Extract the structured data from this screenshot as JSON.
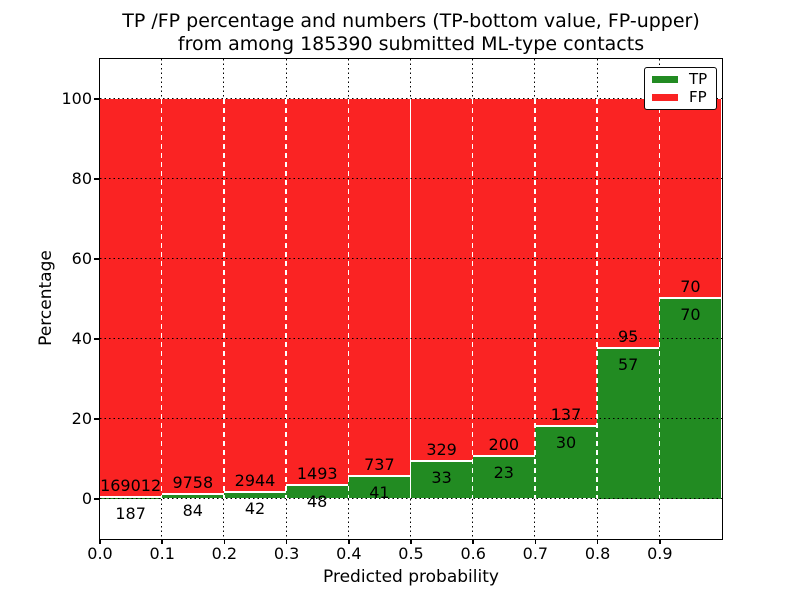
{
  "chart_data": {
    "type": "bar",
    "stacked": true,
    "normalized": "percent",
    "title_line1": "TP /FP percentage and numbers (TP-bottom value, FP-upper)",
    "title_line2": "from among 185390 submitted ML-type contacts",
    "total_contacts": 185390,
    "xlabel": "Predicted probability",
    "ylabel": "Percentage",
    "bin_starts": [
      0.0,
      0.1,
      0.2,
      0.3,
      0.4,
      0.5,
      0.6,
      0.7,
      0.8,
      0.9
    ],
    "bin_width": 0.1,
    "series": [
      {
        "name": "TP",
        "color": "#228b22",
        "counts": [
          187,
          84,
          42,
          48,
          41,
          33,
          23,
          30,
          57,
          70
        ]
      },
      {
        "name": "FP",
        "color": "#fa2323",
        "counts": [
          169012,
          9758,
          2944,
          1493,
          737,
          329,
          200,
          137,
          95,
          70
        ]
      }
    ],
    "tp_percent": [
      0.11,
      0.85,
      1.41,
      3.11,
      5.27,
      9.12,
      10.31,
      17.96,
      37.5,
      50.0
    ],
    "x_tick_labels": [
      "0.0",
      "0.1",
      "0.2",
      "0.3",
      "0.4",
      "0.5",
      "0.6",
      "0.7",
      "0.8",
      "0.9"
    ],
    "y_tick_values": [
      0,
      20,
      40,
      60,
      80,
      100
    ],
    "xlim": [
      0.0,
      1.0
    ],
    "ylim": [
      -10,
      110
    ],
    "grid": true,
    "legend": {
      "position": "upper right",
      "entries": [
        "TP",
        "FP"
      ]
    }
  }
}
